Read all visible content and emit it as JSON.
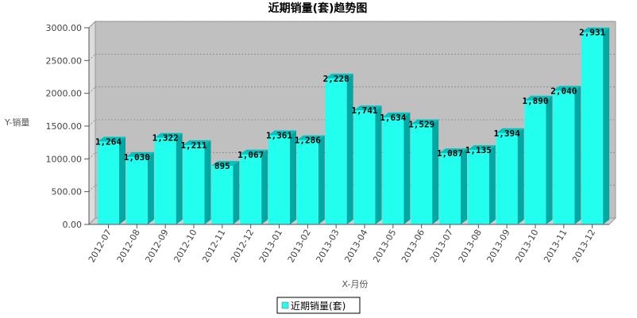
{
  "chart_data": {
    "type": "bar",
    "title": "近期销量(套)趋势图",
    "xlabel": "X-月份",
    "ylabel": "Y-销量",
    "ylim": [
      0,
      3000
    ],
    "yticks": [
      "0.00",
      "500.00",
      "1000.00",
      "1500.00",
      "2000.00",
      "2500.00",
      "3000.00"
    ],
    "grid": true,
    "legend_position": "bottom",
    "bar_color": "#22ffee",
    "categories": [
      "2012-07",
      "2012-08",
      "2012-09",
      "2012-10",
      "2012-11",
      "2012-12",
      "2013-01",
      "2013-02",
      "2013-03",
      "2013-04",
      "2013-05",
      "2013-06",
      "2013-07",
      "2013-08",
      "2013-09",
      "2013-10",
      "2013-11",
      "2013-12"
    ],
    "series": [
      {
        "name": "近期销量(套)",
        "values": [
          1264,
          1030,
          1322,
          1211,
          895,
          1067,
          1361,
          1286,
          2228,
          1741,
          1634,
          1529,
          1087,
          1135,
          1394,
          1890,
          2040,
          2931
        ],
        "labels": [
          "1,264",
          "1,030",
          "1,322",
          "1,211",
          "895",
          "1,067",
          "1,361",
          "1,286",
          "2,228",
          "1,741",
          "1,634",
          "1,529",
          "1,087",
          "1,135",
          "1,394",
          "1,890",
          "2,040",
          "2,931"
        ]
      }
    ]
  }
}
